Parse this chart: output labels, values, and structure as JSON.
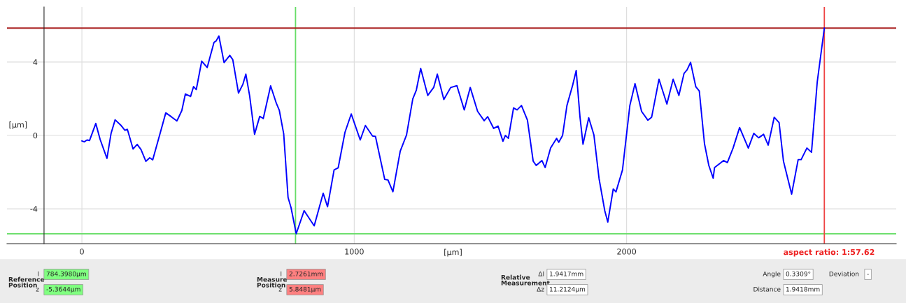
{
  "chart_data": {
    "type": "line",
    "xlabel": "[µm]",
    "ylabel": "[µm]",
    "x": [
      0,
      8.6,
      19,
      28,
      51,
      67,
      92,
      107,
      122,
      142,
      158,
      167,
      188,
      203,
      217,
      235,
      249,
      260,
      284,
      308,
      329,
      349,
      367,
      380,
      399,
      410,
      420,
      440,
      460,
      485,
      493,
      503,
      522,
      543,
      554,
      575,
      591,
      602,
      616,
      634,
      653,
      666,
      693,
      714,
      725,
      741,
      757,
      768,
      787,
      816,
      853,
      886,
      902,
      926,
      941,
      966,
      989,
      1022,
      1041,
      1067,
      1078,
      1112,
      1124,
      1142,
      1169,
      1192,
      1215,
      1228,
      1244,
      1270,
      1292,
      1305,
      1329,
      1354,
      1377,
      1404,
      1426,
      1453,
      1477,
      1490,
      1512,
      1528,
      1546,
      1555,
      1566,
      1585,
      1598,
      1614,
      1636,
      1657,
      1668,
      1689,
      1701,
      1721,
      1743,
      1751,
      1765,
      1781,
      1802,
      1815,
      1829,
      1840,
      1861,
      1880,
      1899,
      1920,
      1931,
      1951,
      1961,
      1985,
      2012,
      2031,
      2055,
      2078,
      2092,
      2119,
      2148,
      2171,
      2192,
      2211,
      2222,
      2235,
      2254,
      2267,
      2286,
      2302,
      2318,
      2323,
      2356,
      2370,
      2391,
      2415,
      2447,
      2467,
      2485,
      2503,
      2520,
      2542,
      2560,
      2576,
      2606,
      2630,
      2641,
      2662,
      2679,
      2700,
      2726.1
    ],
    "series": [
      {
        "color": "#0000ff",
        "values": [
          -0.3,
          -0.35,
          -0.25,
          -0.28,
          0.65,
          -0.22,
          -1.25,
          0.1,
          0.85,
          0.57,
          0.28,
          0.33,
          -0.74,
          -0.49,
          -0.77,
          -1.41,
          -1.22,
          -1.33,
          -0.06,
          1.23,
          1.01,
          0.79,
          1.36,
          2.26,
          2.12,
          2.66,
          2.5,
          4.05,
          3.7,
          5.07,
          5.15,
          5.42,
          3.97,
          4.36,
          4.13,
          2.31,
          2.78,
          3.34,
          2.15,
          0.06,
          1.04,
          0.92,
          2.7,
          1.75,
          1.36,
          0.09,
          -3.38,
          -3.94,
          -5.36,
          -4.1,
          -4.93,
          -3.15,
          -3.89,
          -1.88,
          -1.77,
          0.17,
          1.17,
          -0.25,
          0.54,
          -0.03,
          -0.06,
          -2.4,
          -2.43,
          -3.07,
          -0.85,
          0.02,
          1.99,
          2.47,
          3.65,
          2.18,
          2.62,
          3.34,
          1.96,
          2.61,
          2.71,
          1.39,
          2.61,
          1.31,
          0.8,
          1.02,
          0.38,
          0.51,
          -0.32,
          0,
          -0.16,
          1.5,
          1.39,
          1.63,
          0.83,
          -1.4,
          -1.64,
          -1.37,
          -1.75,
          -0.69,
          -0.16,
          -0.37,
          0,
          1.63,
          2.74,
          3.54,
          0.99,
          -0.48,
          0.96,
          0.03,
          -2.36,
          -4.11,
          -4.72,
          -2.92,
          -3.08,
          -1.88,
          1.63,
          2.82,
          1.31,
          0.83,
          0.99,
          3.06,
          1.71,
          3.06,
          2.18,
          3.38,
          3.57,
          3.98,
          2.66,
          2.42,
          -0.45,
          -1.64,
          -2.33,
          -1.75,
          -1.37,
          -1.48,
          -0.69,
          0.43,
          -0.69,
          0.11,
          -0.13,
          0.06,
          -0.53,
          0.99,
          0.7,
          -1.4,
          -3.2,
          -1.32,
          -1.32,
          -0.69,
          -0.92,
          2.9,
          5.8481
        ]
      }
    ],
    "xlim": [
      -275,
      2990
    ],
    "xticks": [
      0,
      1000,
      2000
    ],
    "ylim": [
      -5.9,
      7.0
    ],
    "yticks": [
      -4,
      0,
      4
    ],
    "grid": true,
    "legend": false,
    "ref_lines": [
      {
        "axis": "x",
        "value": 784.398,
        "color": "#66dd66"
      },
      {
        "axis": "y",
        "value": -5.3644,
        "color": "#66dd66"
      },
      {
        "axis": "x",
        "value": 2726.1,
        "color": "#ee4444"
      },
      {
        "axis": "y",
        "value": 5.8481,
        "color": "#aa2222"
      }
    ],
    "annotations": [
      "aspect ratio: 1:57.62",
      "Reference\nPosition",
      "l",
      "784.3980µm",
      "z",
      "-5.3644µm",
      "Measure\nPosition",
      "l",
      "2.7261mm",
      "z",
      "5.8481µm",
      "Relative\nMeasurement",
      "Δl",
      "1.9417mm",
      "Δz",
      "11.2124µm",
      "Angle",
      "0.3309°",
      "Deviation",
      "-",
      "Distance",
      "1.9418mm"
    ]
  }
}
